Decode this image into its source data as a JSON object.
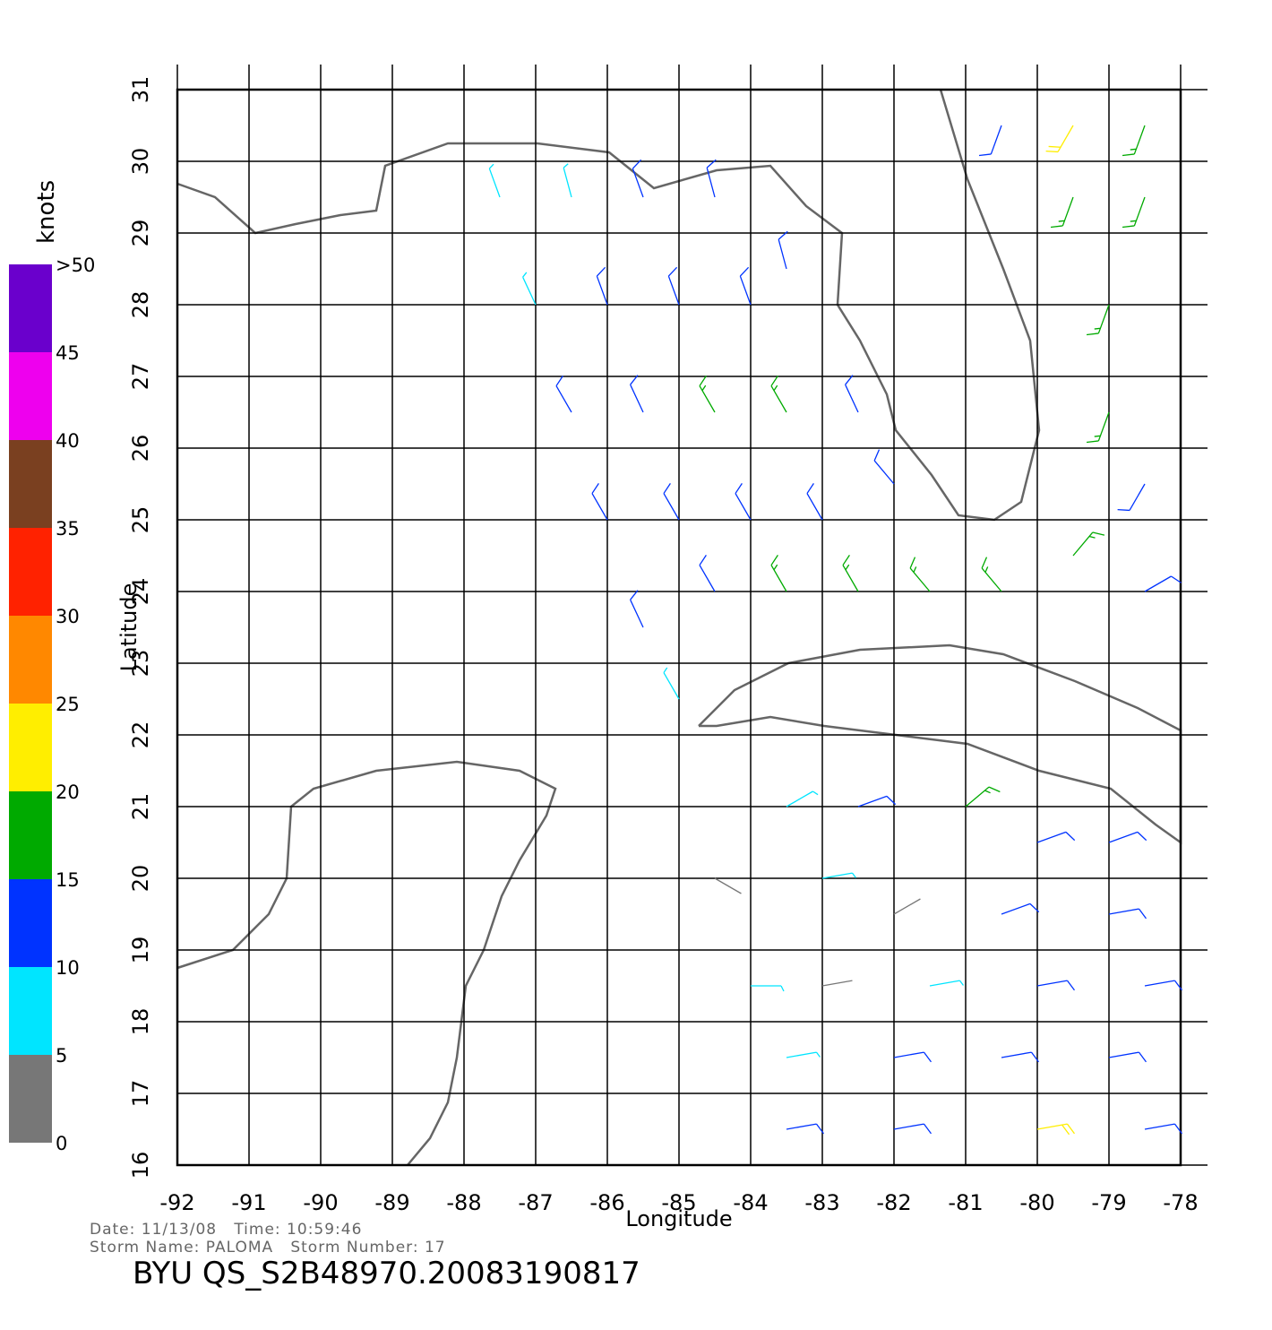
{
  "map": {
    "type": "wind-barbs",
    "x_label": "Longitude",
    "y_label": "Latitude",
    "xlim": [
      -92,
      -78
    ],
    "ylim": [
      16,
      31
    ],
    "xticks": [
      -92,
      -91,
      -90,
      -89,
      -88,
      -87,
      -86,
      -85,
      -84,
      -83,
      -82,
      -81,
      -80,
      -79,
      -78
    ],
    "yticks": [
      16,
      17,
      18,
      19,
      20,
      21,
      22,
      23,
      24,
      25,
      26,
      27,
      28,
      29,
      30,
      31
    ],
    "colorbar": {
      "label": "knots",
      "ticks": [
        0,
        5,
        10,
        15,
        20,
        25,
        30,
        35,
        40,
        45,
        {
          "value": 50,
          "label": ">50"
        }
      ],
      "colors": [
        "#777777",
        "#00e5ff",
        "#0033ff",
        "#00aa00",
        "#ffee00",
        "#ff8800",
        "#ff2200",
        "#7a4020",
        "#ee00ee",
        "#6a00cc"
      ]
    },
    "winds": [
      [
        -87.5,
        29.5,
        7,
        340
      ],
      [
        -86.5,
        29.5,
        9,
        345
      ],
      [
        -85.5,
        29.5,
        10,
        340
      ],
      [
        -84.5,
        29.5,
        12,
        345
      ],
      [
        -87,
        28,
        8,
        335
      ],
      [
        -86,
        28,
        11,
        340
      ],
      [
        -85,
        28,
        12,
        340
      ],
      [
        -84,
        28,
        12,
        340
      ],
      [
        -83.5,
        28.5,
        11,
        345
      ],
      [
        -86.5,
        26.5,
        12,
        330
      ],
      [
        -85.5,
        26.5,
        13,
        335
      ],
      [
        -84.5,
        26.5,
        16,
        330
      ],
      [
        -83.5,
        26.5,
        17,
        330
      ],
      [
        -82.5,
        26.5,
        14,
        335
      ],
      [
        -86,
        25,
        11,
        330
      ],
      [
        -85,
        25,
        13,
        330
      ],
      [
        -84,
        25,
        14,
        330
      ],
      [
        -83,
        25,
        13,
        330
      ],
      [
        -82,
        25.5,
        12,
        320
      ],
      [
        -85.5,
        23.5,
        11,
        335
      ],
      [
        -84.5,
        24,
        13,
        330
      ],
      [
        -83.5,
        24,
        18,
        330
      ],
      [
        -82.5,
        24,
        17,
        330
      ],
      [
        -81.5,
        24,
        17,
        320
      ],
      [
        -80.5,
        24,
        18,
        320
      ],
      [
        -85,
        22.5,
        8,
        330
      ],
      [
        -80.5,
        30.5,
        12,
        200
      ],
      [
        -79.5,
        30.5,
        21,
        210
      ],
      [
        -78.5,
        30.5,
        18,
        200
      ],
      [
        -79.5,
        29.5,
        19,
        200
      ],
      [
        -78.5,
        29.5,
        18,
        200
      ],
      [
        -79,
        28,
        17,
        200
      ],
      [
        -79,
        26.5,
        16,
        200
      ],
      [
        -78.5,
        25.5,
        14,
        210
      ],
      [
        -79.5,
        24.5,
        17,
        40
      ],
      [
        -78.5,
        24,
        13,
        60
      ],
      [
        -83.5,
        21,
        9,
        60
      ],
      [
        -82.5,
        21,
        10,
        70
      ],
      [
        -81,
        21,
        17,
        50
      ],
      [
        -80,
        20.5,
        12,
        70
      ],
      [
        -79,
        20.5,
        11,
        70
      ],
      [
        -84.5,
        20,
        3,
        120
      ],
      [
        -83,
        20,
        8,
        80
      ],
      [
        -82,
        19.5,
        3,
        60
      ],
      [
        -80.5,
        19.5,
        11,
        70
      ],
      [
        -79,
        19.5,
        12,
        80
      ],
      [
        -84,
        18.5,
        7,
        90
      ],
      [
        -83,
        18.5,
        4,
        80
      ],
      [
        -81.5,
        18.5,
        8,
        80
      ],
      [
        -80,
        18.5,
        10,
        80
      ],
      [
        -78.5,
        18.5,
        12,
        80
      ],
      [
        -83.5,
        17.5,
        9,
        80
      ],
      [
        -82,
        17.5,
        11,
        80
      ],
      [
        -80.5,
        17.5,
        10,
        80
      ],
      [
        -79,
        17.5,
        11,
        80
      ],
      [
        -83.5,
        16.5,
        11,
        80
      ],
      [
        -82,
        16.5,
        12,
        80
      ],
      [
        -80,
        16.5,
        22,
        80
      ],
      [
        -78.5,
        16.5,
        13,
        80
      ]
    ]
  },
  "footer": {
    "line1": "Date: 11/13/08   Time: 10:59:46",
    "line2": "Storm Name: PALOMA   Storm Number: 17",
    "title": "BYU QS_S2B48970.20083190817"
  }
}
